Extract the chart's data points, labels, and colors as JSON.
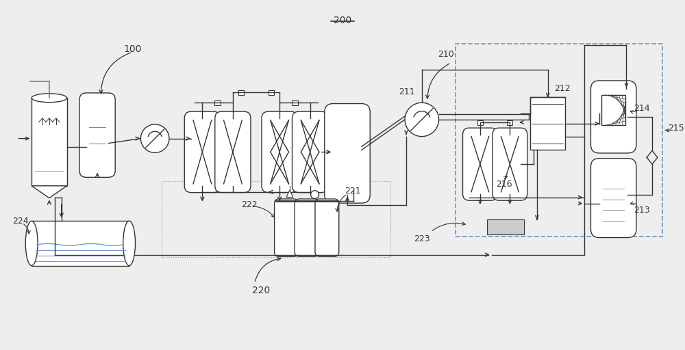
{
  "bg_color": "#eeeeee",
  "lc": "#333333",
  "green": "#559955",
  "blue": "#5577aa",
  "dash_color": "#7799cc",
  "figw": 10.0,
  "figh": 5.12,
  "xlim": [
    0,
    10
  ],
  "ylim": [
    0,
    5.12
  ],
  "label_200": "200",
  "label_100": "100",
  "label_210": "210",
  "label_211": "211",
  "label_212": "212",
  "label_213": "213",
  "label_214": "214",
  "label_215": "215",
  "label_216": "216",
  "label_220": "220",
  "label_221": "221",
  "label_222": "222",
  "label_223": "223",
  "label_224": "224"
}
